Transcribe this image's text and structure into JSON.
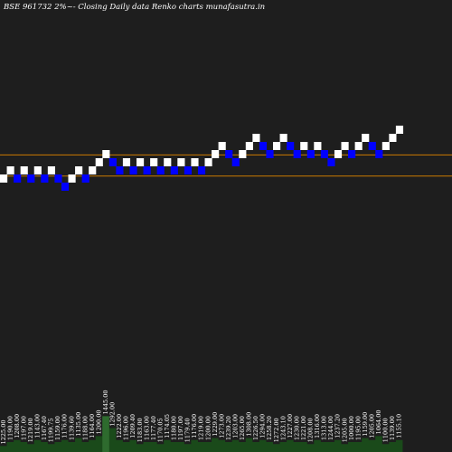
{
  "chart_data": {
    "type": "renko",
    "title": "BSE 961732  2%~-  Closing Daily data  Renko  charts munafasutra.in",
    "colors": {
      "background": "#1e1e1e",
      "up_brick": "#ffffff",
      "down_brick": "#0000ff",
      "reference_line": "#cc7a00",
      "volume": "#1a4a1a",
      "volume_highlight": "#2e6b2e"
    },
    "bricks": [
      {
        "x": 0,
        "level": 0,
        "dir": "up"
      },
      {
        "x": 1,
        "level": 1,
        "dir": "up"
      },
      {
        "x": 2,
        "level": 0,
        "dir": "down"
      },
      {
        "x": 3,
        "level": 1,
        "dir": "up"
      },
      {
        "x": 4,
        "level": 0,
        "dir": "down"
      },
      {
        "x": 5,
        "level": 1,
        "dir": "up"
      },
      {
        "x": 6,
        "level": 0,
        "dir": "down"
      },
      {
        "x": 7,
        "level": 1,
        "dir": "up"
      },
      {
        "x": 8,
        "level": 0,
        "dir": "down"
      },
      {
        "x": 9,
        "level": -1,
        "dir": "down"
      },
      {
        "x": 10,
        "level": 0,
        "dir": "up"
      },
      {
        "x": 11,
        "level": 1,
        "dir": "up"
      },
      {
        "x": 12,
        "level": 0,
        "dir": "down"
      },
      {
        "x": 13,
        "level": 1,
        "dir": "up"
      },
      {
        "x": 14,
        "level": 2,
        "dir": "up"
      },
      {
        "x": 15,
        "level": 3,
        "dir": "up"
      },
      {
        "x": 16,
        "level": 2,
        "dir": "down"
      },
      {
        "x": 17,
        "level": 1,
        "dir": "down"
      },
      {
        "x": 18,
        "level": 2,
        "dir": "up"
      },
      {
        "x": 19,
        "level": 1,
        "dir": "down"
      },
      {
        "x": 20,
        "level": 2,
        "dir": "up"
      },
      {
        "x": 21,
        "level": 1,
        "dir": "down"
      },
      {
        "x": 22,
        "level": 2,
        "dir": "up"
      },
      {
        "x": 23,
        "level": 1,
        "dir": "down"
      },
      {
        "x": 24,
        "level": 2,
        "dir": "up"
      },
      {
        "x": 25,
        "level": 1,
        "dir": "down"
      },
      {
        "x": 26,
        "level": 2,
        "dir": "up"
      },
      {
        "x": 27,
        "level": 1,
        "dir": "down"
      },
      {
        "x": 28,
        "level": 2,
        "dir": "up"
      },
      {
        "x": 29,
        "level": 1,
        "dir": "down"
      },
      {
        "x": 30,
        "level": 2,
        "dir": "up"
      },
      {
        "x": 31,
        "level": 3,
        "dir": "up"
      },
      {
        "x": 32,
        "level": 4,
        "dir": "up"
      },
      {
        "x": 33,
        "level": 3,
        "dir": "down"
      },
      {
        "x": 34,
        "level": 2,
        "dir": "down"
      },
      {
        "x": 35,
        "level": 3,
        "dir": "up"
      },
      {
        "x": 36,
        "level": 4,
        "dir": "up"
      },
      {
        "x": 37,
        "level": 5,
        "dir": "up"
      },
      {
        "x": 38,
        "level": 4,
        "dir": "down"
      },
      {
        "x": 39,
        "level": 3,
        "dir": "down"
      },
      {
        "x": 40,
        "level": 4,
        "dir": "up"
      },
      {
        "x": 41,
        "level": 5,
        "dir": "up"
      },
      {
        "x": 42,
        "level": 4,
        "dir": "down"
      },
      {
        "x": 43,
        "level": 3,
        "dir": "down"
      },
      {
        "x": 44,
        "level": 4,
        "dir": "up"
      },
      {
        "x": 45,
        "level": 3,
        "dir": "down"
      },
      {
        "x": 46,
        "level": 4,
        "dir": "up"
      },
      {
        "x": 47,
        "level": 3,
        "dir": "down"
      },
      {
        "x": 48,
        "level": 2,
        "dir": "down"
      },
      {
        "x": 49,
        "level": 3,
        "dir": "up"
      },
      {
        "x": 50,
        "level": 4,
        "dir": "up"
      },
      {
        "x": 51,
        "level": 3,
        "dir": "down"
      },
      {
        "x": 52,
        "level": 4,
        "dir": "up"
      },
      {
        "x": 53,
        "level": 5,
        "dir": "up"
      },
      {
        "x": 54,
        "level": 4,
        "dir": "down"
      },
      {
        "x": 55,
        "level": 3,
        "dir": "down"
      },
      {
        "x": 56,
        "level": 4,
        "dir": "up"
      },
      {
        "x": 57,
        "level": 5,
        "dir": "up"
      },
      {
        "x": 58,
        "level": 6,
        "dir": "up"
      }
    ],
    "reference_lines": [
      {
        "level": 2.9
      },
      {
        "level": 0.3
      }
    ],
    "volume": [
      3,
      5,
      6,
      5,
      4,
      6,
      5,
      4,
      5,
      6,
      5,
      7,
      5,
      6,
      8,
      18,
      12,
      6,
      5,
      6,
      4,
      5,
      5,
      4,
      6,
      5,
      5,
      4,
      6,
      5,
      5,
      7,
      6,
      5,
      6,
      5,
      7,
      5,
      6,
      5,
      4,
      5,
      6,
      5,
      5,
      4,
      6,
      5,
      5,
      6,
      4,
      5,
      5,
      7,
      6,
      8,
      4,
      5,
      6
    ],
    "volume_highlight_index": 15,
    "volume_labels": [
      "1225.00",
      "1190.00",
      "1208.00",
      "1197.00",
      "1219.00",
      "1143.00",
      "1167.40",
      "1199.75",
      "1159.00",
      "1176.00",
      "1139.60",
      "1135.00",
      "1188.00",
      "1164.00",
      "1200.00",
      "1445.00",
      "1292.00",
      "1222.00",
      "1196.00",
      "1209.40",
      "1183.00",
      "1163.00",
      "1177.40",
      "1170.05",
      "1174.05",
      "1180.00",
      "1197.00",
      "1179.40",
      "1176.00",
      "1219.00",
      "1200.00",
      "1229.00",
      "1273.00",
      "1239.20",
      "1203.00",
      "1265.00",
      "1308.00",
      "1226.50",
      "1294.00",
      "1258.20",
      "1272.00",
      "1243.10",
      "1227.00",
      "1230.00",
      "1221.00",
      "1208.00",
      "1316.00",
      "1313.00",
      "1244.00",
      "1237.20",
      "1205.00",
      "1000.00",
      "1195.00",
      "1159.00",
      "1205.00",
      "1064.00",
      "1100.00",
      "1139.00",
      "1155.10"
    ]
  }
}
